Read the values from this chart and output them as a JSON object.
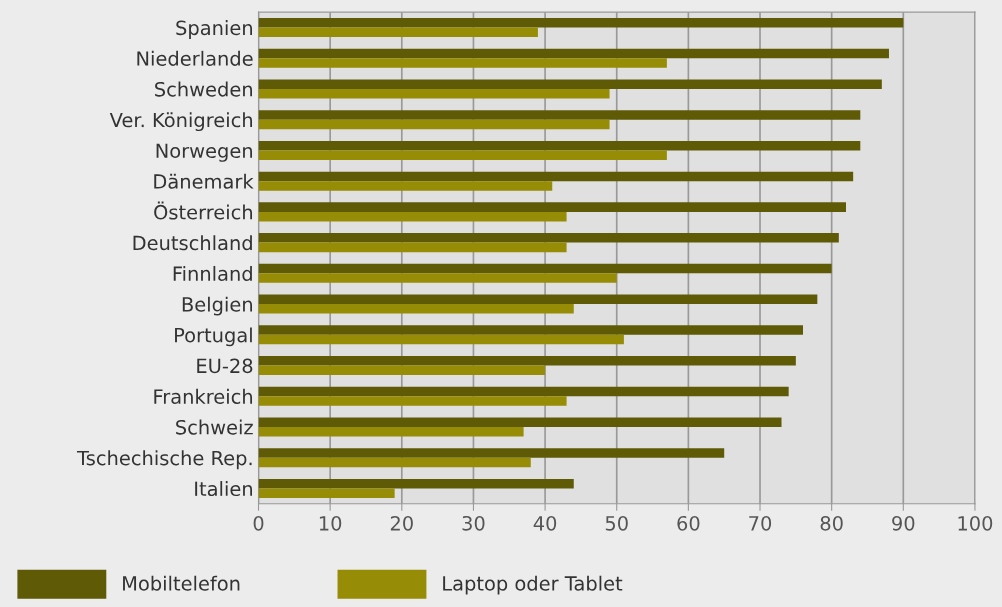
{
  "chart_data": {
    "type": "bar",
    "orientation": "horizontal",
    "categories": [
      "Spanien",
      "Niederlande",
      "Schweden",
      "Ver. Königreich",
      "Norwegen",
      "Dänemark",
      "Österreich",
      "Deutschland",
      "Finnland",
      "Belgien",
      "Portugal",
      "EU-28",
      "Frankreich",
      "Schweiz",
      "Tschechische Rep.",
      "Italien"
    ],
    "series": [
      {
        "name": "Mobiltelefon",
        "color": "#5f5a06",
        "values": [
          90,
          88,
          87,
          84,
          84,
          83,
          82,
          81,
          80,
          78,
          76,
          75,
          74,
          73,
          65,
          44
        ]
      },
      {
        "name": "Laptop oder Tablet",
        "color": "#968c05",
        "values": [
          39,
          57,
          49,
          49,
          57,
          41,
          43,
          43,
          50,
          44,
          51,
          40,
          43,
          37,
          38,
          19
        ]
      }
    ],
    "xlim": [
      0,
      100
    ],
    "xticks": [
      0,
      10,
      20,
      30,
      40,
      50,
      60,
      70,
      80,
      90,
      100
    ],
    "grid": "x",
    "legend": "bottom"
  }
}
